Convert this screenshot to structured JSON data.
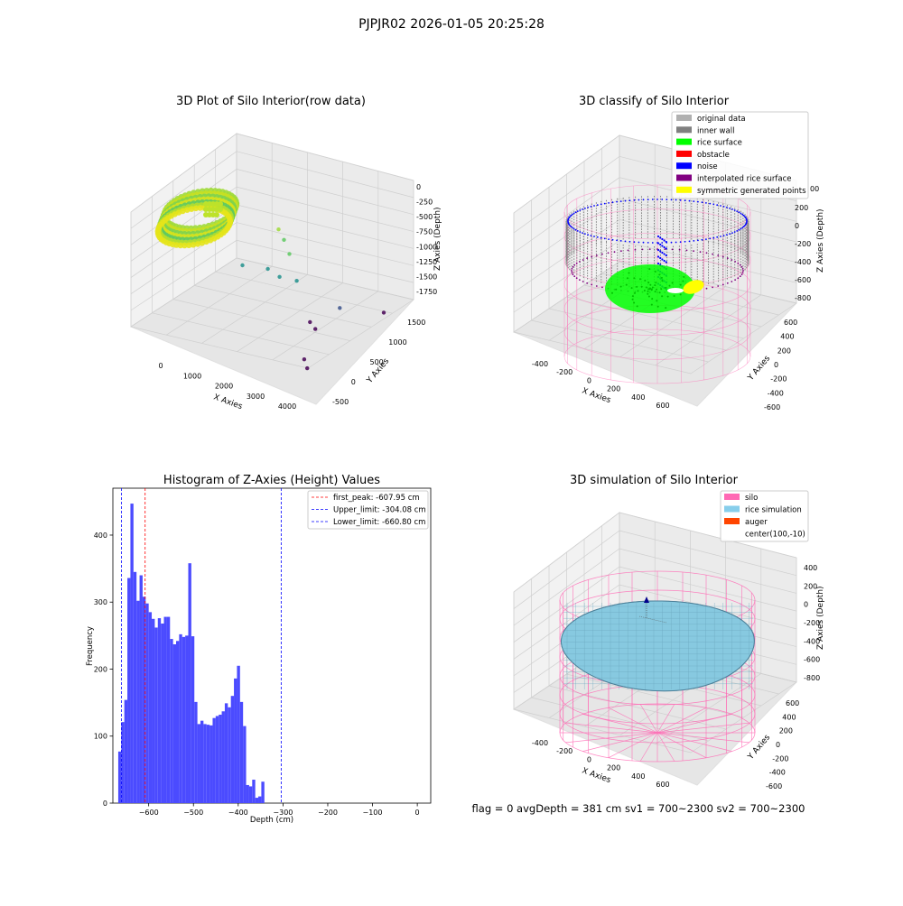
{
  "suptitle": "PJPJR02 2026-01-05 20:25:28",
  "footer_text": "flag = 0     avgDepth = 381 cm  sv1 = 700~2300  sv2 = 700~2300",
  "colors": {
    "background": "#ffffff",
    "pane_light": "#f2f2f2",
    "pane_dark": "#e6e6e6",
    "grid": "#c8c8c8",
    "hist_bar": "#4b4bff",
    "first_peak_line": "#ff0000",
    "limit_line": "#0000ff",
    "silo_wire": "#ff69b4",
    "rice_sim": "#87c9e0",
    "inner_wall": "#808080",
    "rice_surface": "#00ff00",
    "noise": "#0000ff",
    "interpolated": "#800080",
    "symmetric": "#ffff00"
  },
  "chart_data": [
    {
      "type": "scatter3d",
      "title": "3D Plot of Silo Interior(row data)",
      "xlabel": "X Axies",
      "ylabel": "Y Axies",
      "zlabel": "Z Axies (Depth)",
      "x_ticks": [
        "0",
        "1000",
        "2000",
        "3000",
        "4000"
      ],
      "y_ticks": [
        "-500",
        "0",
        "500",
        "1000",
        "1500"
      ],
      "z_ticks": [
        "0",
        "-250",
        "-500",
        "-750",
        "-1000",
        "-1250",
        "-1500",
        "-1750"
      ],
      "xlim": [
        -500,
        4500
      ],
      "ylim": [
        -600,
        1600
      ],
      "zlim": [
        -1900,
        0
      ],
      "colormap": "viridis",
      "points": [
        {
          "x": 2500,
          "y": 200,
          "z": -350
        },
        {
          "x": 2600,
          "y": 250,
          "z": -500
        },
        {
          "x": 2700,
          "y": 300,
          "z": -700
        },
        {
          "x": 2300,
          "y": 100,
          "z": -900
        },
        {
          "x": 2550,
          "y": 180,
          "z": -1000
        },
        {
          "x": 1900,
          "y": -200,
          "z": -800
        },
        {
          "x": 2800,
          "y": 400,
          "z": -1100
        },
        {
          "x": 3600,
          "y": 800,
          "z": -1500
        },
        {
          "x": 3300,
          "y": 300,
          "z": -1550
        },
        {
          "x": 3400,
          "y": 350,
          "z": -1650
        },
        {
          "x": 4200,
          "y": 1400,
          "z": -1700
        },
        {
          "x": 3700,
          "y": -200,
          "z": -1800
        },
        {
          "x": 3900,
          "y": -300,
          "z": -1850
        }
      ]
    },
    {
      "type": "scatter3d",
      "title": "3D classify of Silo Interior",
      "xlabel": "X Axies",
      "ylabel": "Y Axies",
      "zlabel": "Z Axies (Depth)",
      "x_ticks": [
        "-400",
        "-200",
        "0",
        "200",
        "400",
        "600"
      ],
      "y_ticks": [
        "-600",
        "-400",
        "-200",
        "0",
        "200",
        "400",
        "600"
      ],
      "z_ticks": [
        "200",
        "0",
        "-200",
        "-400",
        "-600",
        "-800"
      ],
      "z_ticks_partial": [
        "00"
      ],
      "legend": [
        {
          "label": "original data",
          "color": "#b0b0b0"
        },
        {
          "label": "inner wall",
          "color": "#808080"
        },
        {
          "label": "rice surface",
          "color": "#00ff00"
        },
        {
          "label": "obstacle",
          "color": "#ff0000"
        },
        {
          "label": "noise",
          "color": "#0000ff"
        },
        {
          "label": "interpolated rice surface",
          "color": "#800080"
        },
        {
          "label": "symmetric generated points",
          "color": "#ffff00"
        }
      ]
    },
    {
      "type": "bar",
      "title": "Histogram of Z-Axies (Height) Values",
      "xlabel": "Depth (cm)",
      "ylabel": "Frequency",
      "xlim": [
        -680,
        30
      ],
      "ylim": [
        0,
        470
      ],
      "x_ticks": [
        -600,
        -500,
        -400,
        -300,
        -200,
        -100,
        0
      ],
      "y_ticks": [
        0,
        100,
        200,
        300,
        400
      ],
      "bin_start": -668,
      "bin_width": 6.8,
      "values": [
        77,
        121,
        154,
        336,
        447,
        345,
        302,
        340,
        308,
        298,
        285,
        275,
        262,
        276,
        268,
        278,
        278,
        245,
        237,
        242,
        252,
        248,
        250,
        358,
        249,
        151,
        118,
        123,
        118,
        117,
        116,
        127,
        130,
        132,
        137,
        149,
        143,
        160,
        186,
        205,
        151,
        115,
        27,
        25,
        35,
        8,
        10,
        32
      ],
      "vlines": [
        {
          "label": "first_peak: -607.95 cm",
          "x": -607.95,
          "color": "#ff0000"
        },
        {
          "label": "Upper_limit: -304.08 cm",
          "x": -304.08,
          "color": "#0000ff"
        },
        {
          "label": "Lower_limit: -660.80 cm",
          "x": -660.8,
          "color": "#0000ff"
        }
      ]
    },
    {
      "type": "surface3d",
      "title": "3D simulation of Silo Interior",
      "xlabel": "X Axies",
      "ylabel": "Y Axies",
      "zlabel": "Z Axies (Depth)",
      "x_ticks": [
        "-400",
        "-200",
        "0",
        "200",
        "400",
        "600"
      ],
      "y_ticks": [
        "-600",
        "-400",
        "-200",
        "0",
        "200",
        "400",
        "600"
      ],
      "z_ticks": [
        "400",
        "200",
        "0",
        "-200",
        "-400",
        "-600",
        "-800"
      ],
      "legend": [
        {
          "label": "silo",
          "color": "#ff69b4"
        },
        {
          "label": "rice simulation",
          "color": "#87ceeb"
        },
        {
          "label": "auger",
          "color": "#ff4500"
        },
        {
          "label": "center(100,-10)",
          "color": ""
        }
      ]
    }
  ]
}
